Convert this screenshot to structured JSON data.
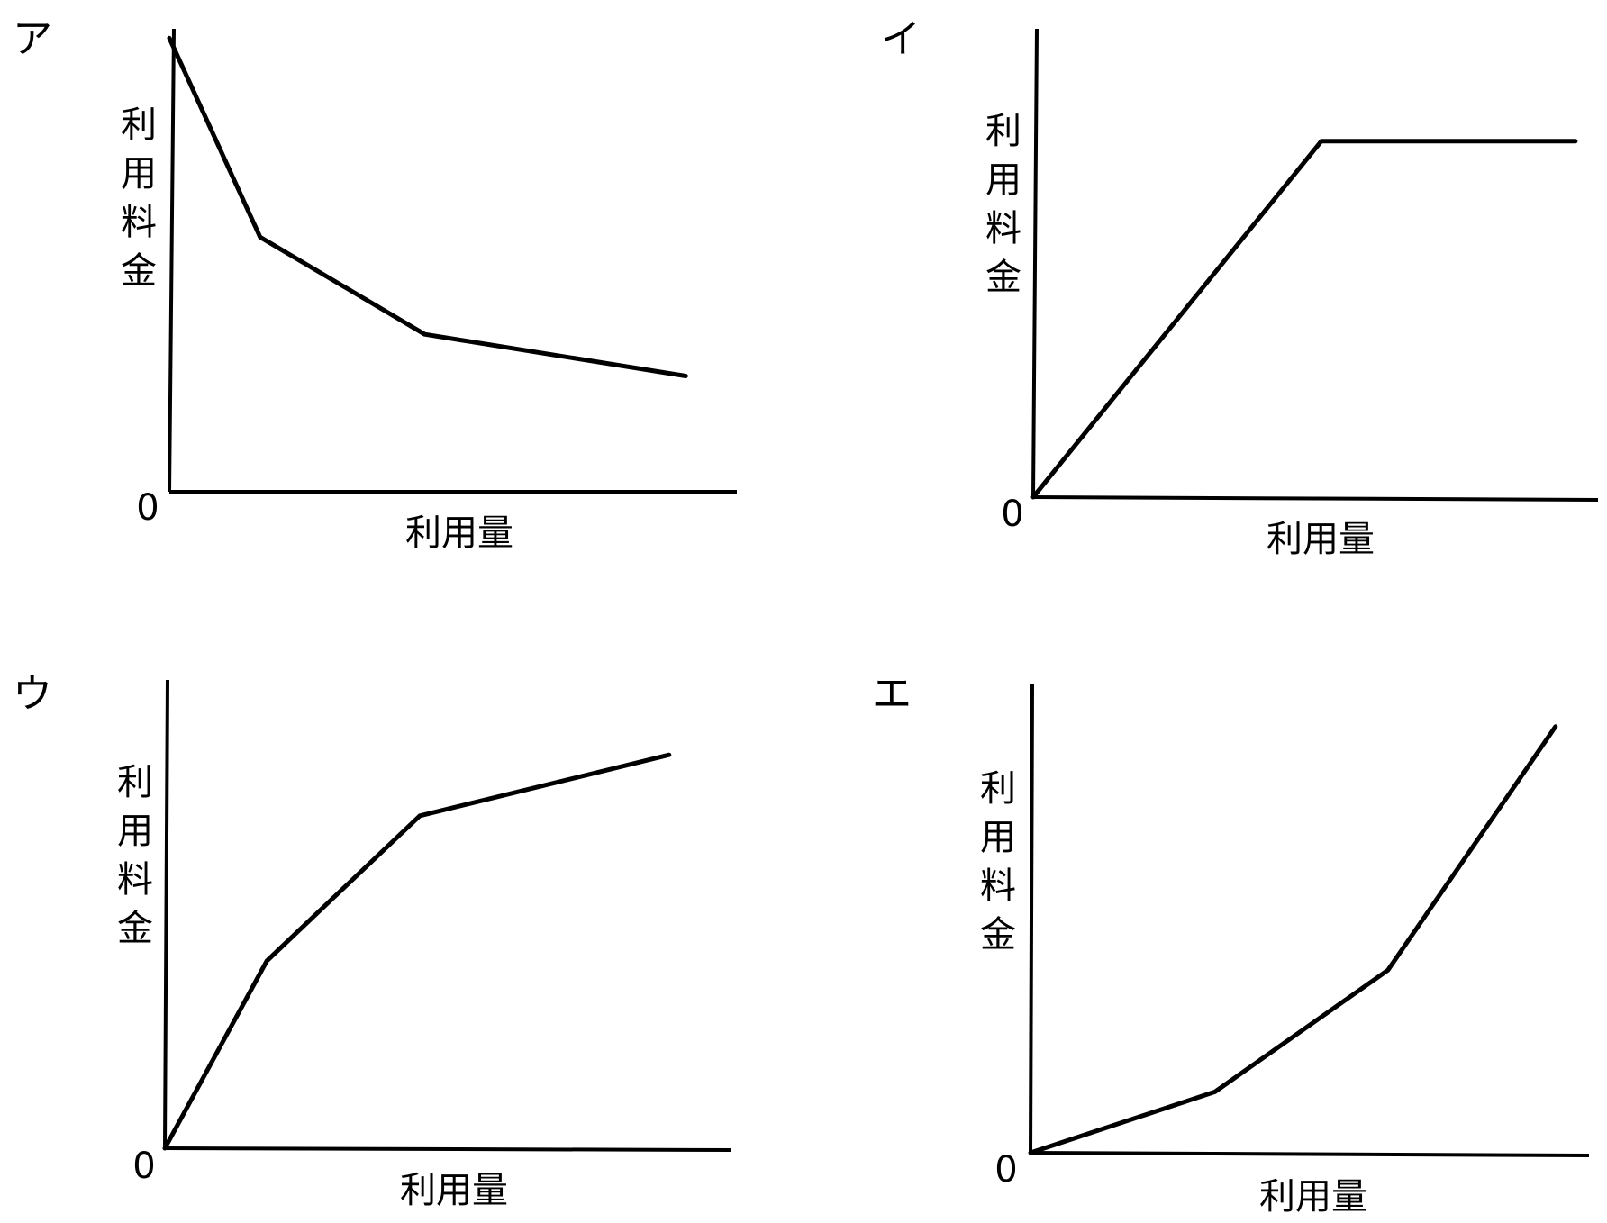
{
  "chart_data": [
    {
      "type": "line",
      "panel_label": "ア",
      "xlabel": "利用量",
      "ylabel": "利用料金",
      "origin_label": "0",
      "xlim": [
        0,
        100
      ],
      "ylim": [
        0,
        100
      ],
      "series": [
        {
          "x": [
            0,
            16,
            45,
            91
          ],
          "y": [
            98,
            55,
            34,
            25
          ]
        }
      ]
    },
    {
      "type": "line",
      "panel_label": "イ",
      "xlabel": "利用量",
      "ylabel": "利用料金",
      "origin_label": "0",
      "xlim": [
        0,
        100
      ],
      "ylim": [
        0,
        100
      ],
      "series": [
        {
          "x": [
            0,
            51,
            96
          ],
          "y": [
            0,
            76,
            76
          ]
        }
      ]
    },
    {
      "type": "line",
      "panel_label": "ウ",
      "xlabel": "利用量",
      "ylabel": "利用料金",
      "origin_label": "0",
      "xlim": [
        0,
        100
      ],
      "ylim": [
        0,
        100
      ],
      "series": [
        {
          "x": [
            0,
            18,
            45,
            89
          ],
          "y": [
            0,
            40,
            71,
            84
          ]
        }
      ]
    },
    {
      "type": "line",
      "panel_label": "エ",
      "xlabel": "利用量",
      "ylabel": "利用料金",
      "origin_label": "0",
      "xlim": [
        0,
        100
      ],
      "ylim": [
        0,
        100
      ],
      "series": [
        {
          "x": [
            0,
            33,
            64,
            94
          ],
          "y": [
            0,
            13,
            39,
            91
          ]
        }
      ]
    }
  ]
}
